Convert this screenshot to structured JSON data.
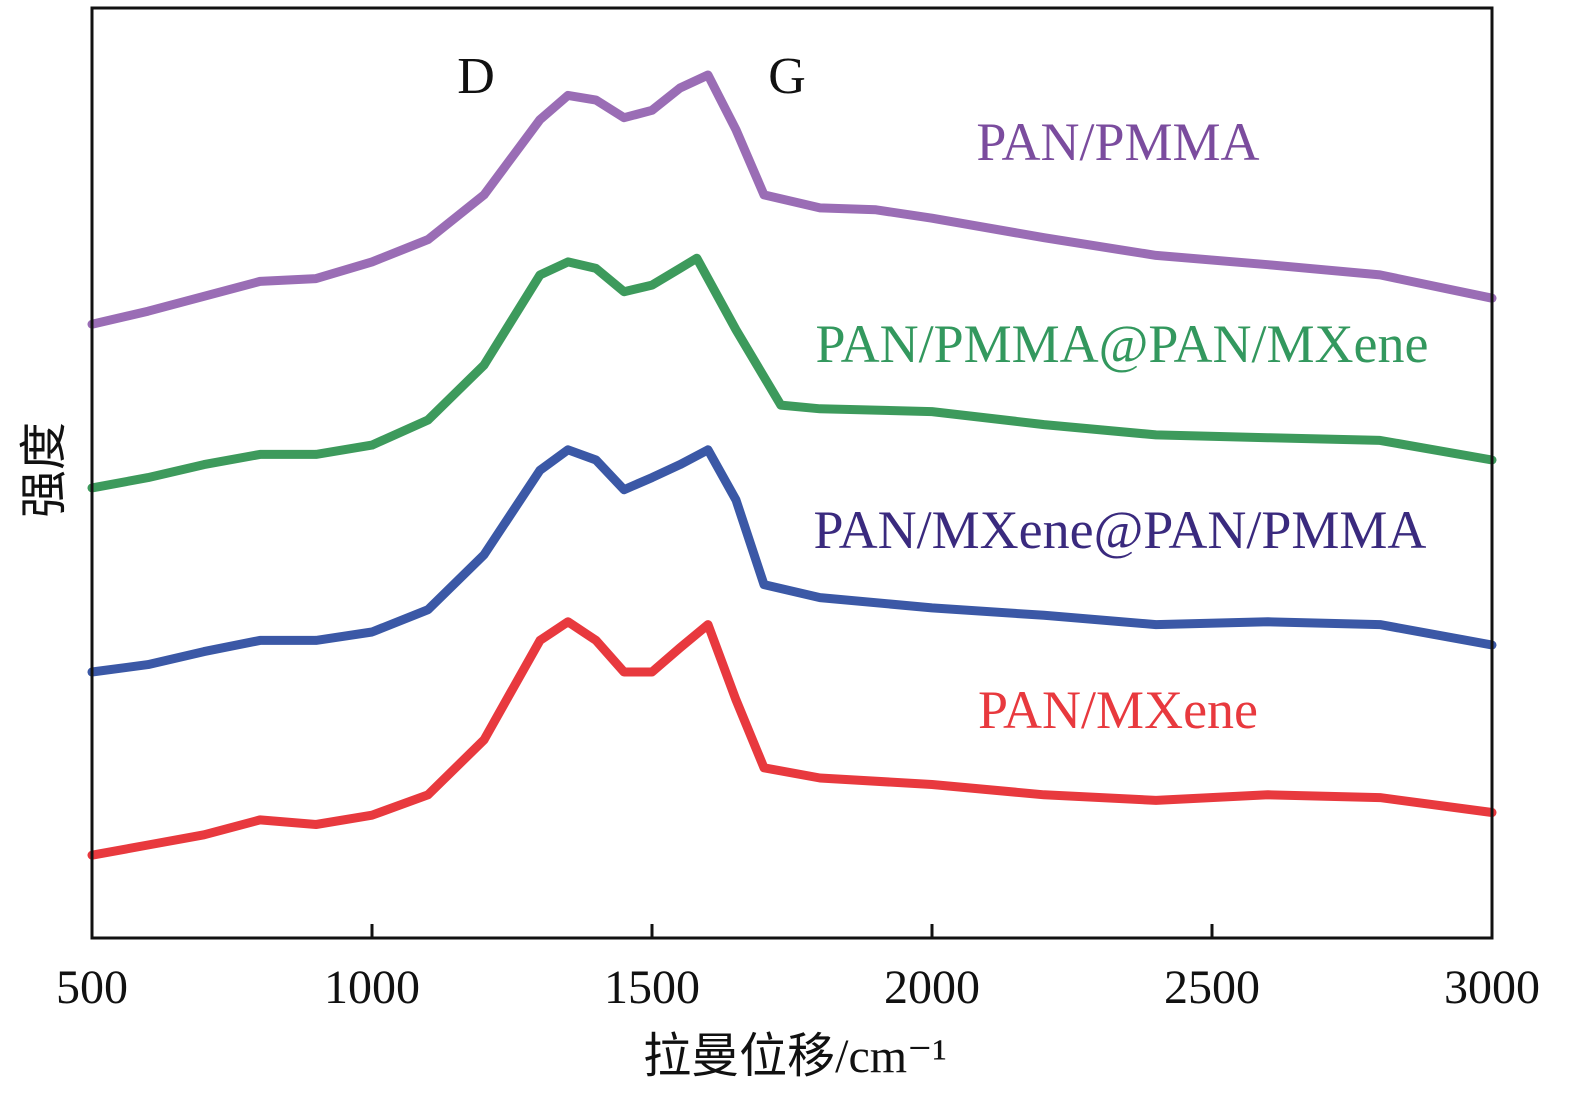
{
  "chart_data": {
    "type": "line",
    "title": "",
    "xlabel": "拉曼位移/cm⁻¹",
    "ylabel": "强度",
    "xlim": [
      500,
      3000
    ],
    "ylim": [
      0,
      100
    ],
    "y_units": "arbitrary (stacked, offset)",
    "xticks": [
      500,
      1000,
      1500,
      2000,
      2500,
      3000
    ],
    "xtick_labels": [
      "500",
      "1000",
      "1500",
      "2000",
      "2500",
      "3000"
    ],
    "grid": false,
    "annotations": [
      {
        "text": "D",
        "x": 1350
      },
      {
        "text": "G",
        "x": 1580
      }
    ],
    "series": [
      {
        "name": "PAN/PMMA",
        "color": "#9a6db5",
        "label_color": "#7b4c9e",
        "x": [
          500,
          600,
          700,
          800,
          900,
          1000,
          1100,
          1200,
          1300,
          1350,
          1400,
          1450,
          1500,
          1550,
          1600,
          1650,
          1700,
          1800,
          1900,
          2000,
          2200,
          2400,
          2600,
          2800,
          3000
        ],
        "y": [
          66.0,
          67.4,
          69.0,
          70.6,
          70.9,
          72.7,
          75.1,
          79.9,
          88.0,
          90.6,
          90.1,
          88.2,
          89.0,
          91.4,
          92.8,
          86.9,
          79.9,
          78.5,
          78.3,
          77.4,
          75.3,
          73.4,
          72.4,
          71.3,
          68.8
        ]
      },
      {
        "name": "PAN/PMMA@PAN/MXene",
        "color": "#3d9a5c",
        "label_color": "#33985e",
        "x": [
          500,
          600,
          700,
          800,
          900,
          1000,
          1100,
          1200,
          1300,
          1350,
          1400,
          1450,
          1500,
          1550,
          1580,
          1650,
          1730,
          1800,
          2000,
          2200,
          2400,
          2600,
          2800,
          3000
        ],
        "y": [
          48.4,
          49.5,
          50.9,
          52.0,
          52.0,
          53.0,
          55.7,
          61.6,
          71.3,
          72.7,
          72.0,
          69.5,
          70.2,
          72.0,
          73.1,
          65.4,
          57.3,
          56.9,
          56.6,
          55.2,
          54.1,
          53.8,
          53.5,
          51.4
        ]
      },
      {
        "name": "PAN/MXene@PAN/PMMA",
        "color": "#3b58a6",
        "label_color": "#3a2a7e",
        "x": [
          500,
          600,
          700,
          800,
          900,
          1000,
          1100,
          1200,
          1300,
          1350,
          1400,
          1450,
          1500,
          1550,
          1600,
          1650,
          1700,
          1800,
          2000,
          2200,
          2400,
          2600,
          2800,
          3000
        ],
        "y": [
          28.6,
          29.4,
          30.8,
          32.0,
          32.0,
          32.9,
          35.3,
          41.2,
          50.3,
          52.5,
          51.4,
          48.2,
          49.5,
          50.9,
          52.5,
          47.1,
          38.0,
          36.6,
          35.5,
          34.7,
          33.7,
          34.0,
          33.7,
          31.5
        ]
      },
      {
        "name": "PAN/MXene",
        "color": "#e8393e",
        "label_color": "#e8393e",
        "x": [
          500,
          600,
          700,
          800,
          900,
          1000,
          1100,
          1200,
          1300,
          1350,
          1400,
          1450,
          1500,
          1550,
          1600,
          1650,
          1700,
          1800,
          2000,
          2200,
          2400,
          2600,
          2800,
          3000
        ],
        "y": [
          8.9,
          10.0,
          11.1,
          12.7,
          12.2,
          13.2,
          15.4,
          21.3,
          32.0,
          34.0,
          32.0,
          28.6,
          28.6,
          31.2,
          33.7,
          25.6,
          18.3,
          17.2,
          16.5,
          15.4,
          14.8,
          15.4,
          15.1,
          13.5
        ]
      }
    ]
  }
}
